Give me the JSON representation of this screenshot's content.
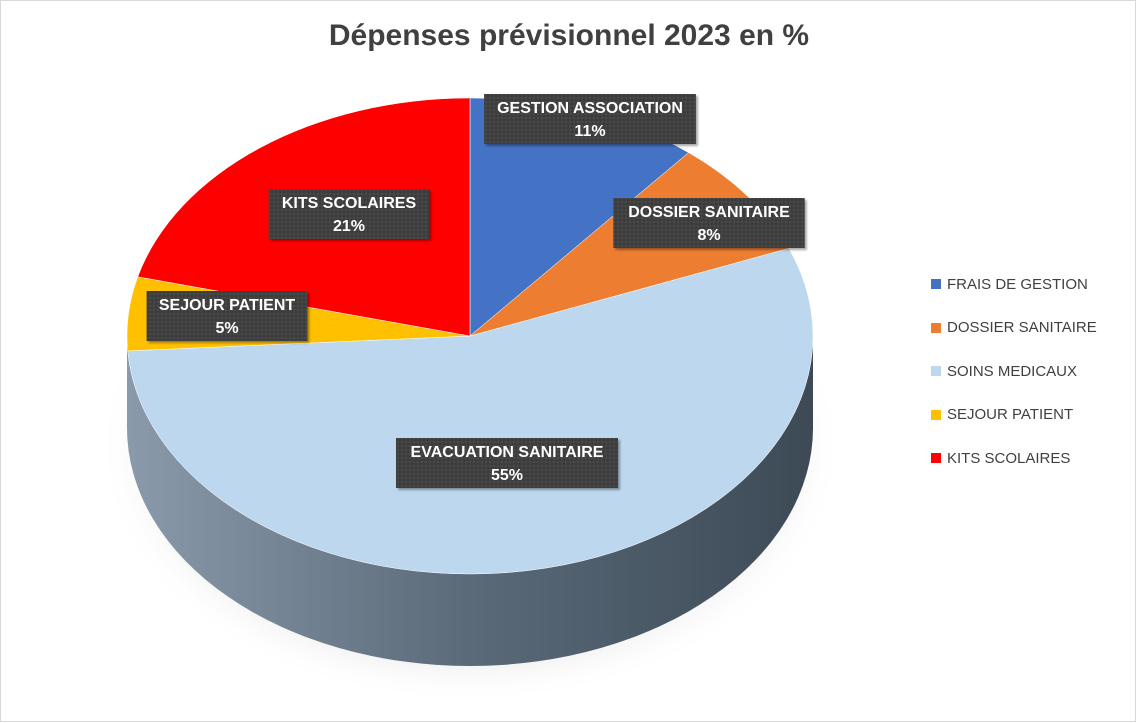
{
  "chart_data": {
    "type": "pie",
    "title": "Dépenses prévisionnel 2023 en %",
    "slices": [
      {
        "legend": "FRAIS DE GESTION",
        "data_label": "GESTION ASSOCIATION",
        "value": 11,
        "value_label": "11%",
        "color": "#4472C4"
      },
      {
        "legend": "DOSSIER SANITAIRE",
        "data_label": "DOSSIER SANITAIRE",
        "value": 8,
        "value_label": "8%",
        "color": "#ED7D31"
      },
      {
        "legend": "SOINS MEDICAUX",
        "data_label": "EVACUATION SANITAIRE",
        "value": 55,
        "value_label": "55%",
        "color": "#BDD7EE"
      },
      {
        "legend": "SEJOUR PATIENT",
        "data_label": "SEJOUR PATIENT",
        "value": 5,
        "value_label": "5%",
        "color": "#FFC000"
      },
      {
        "legend": "KITS SCOLAIRES",
        "data_label": "KITS SCOLAIRES",
        "value": 21,
        "value_label": "21%",
        "color": "#FF0000"
      }
    ],
    "legend_position": "right",
    "style": "3d-pie",
    "data_label_background": "#404040",
    "data_label_color": "#FFFFFF"
  }
}
